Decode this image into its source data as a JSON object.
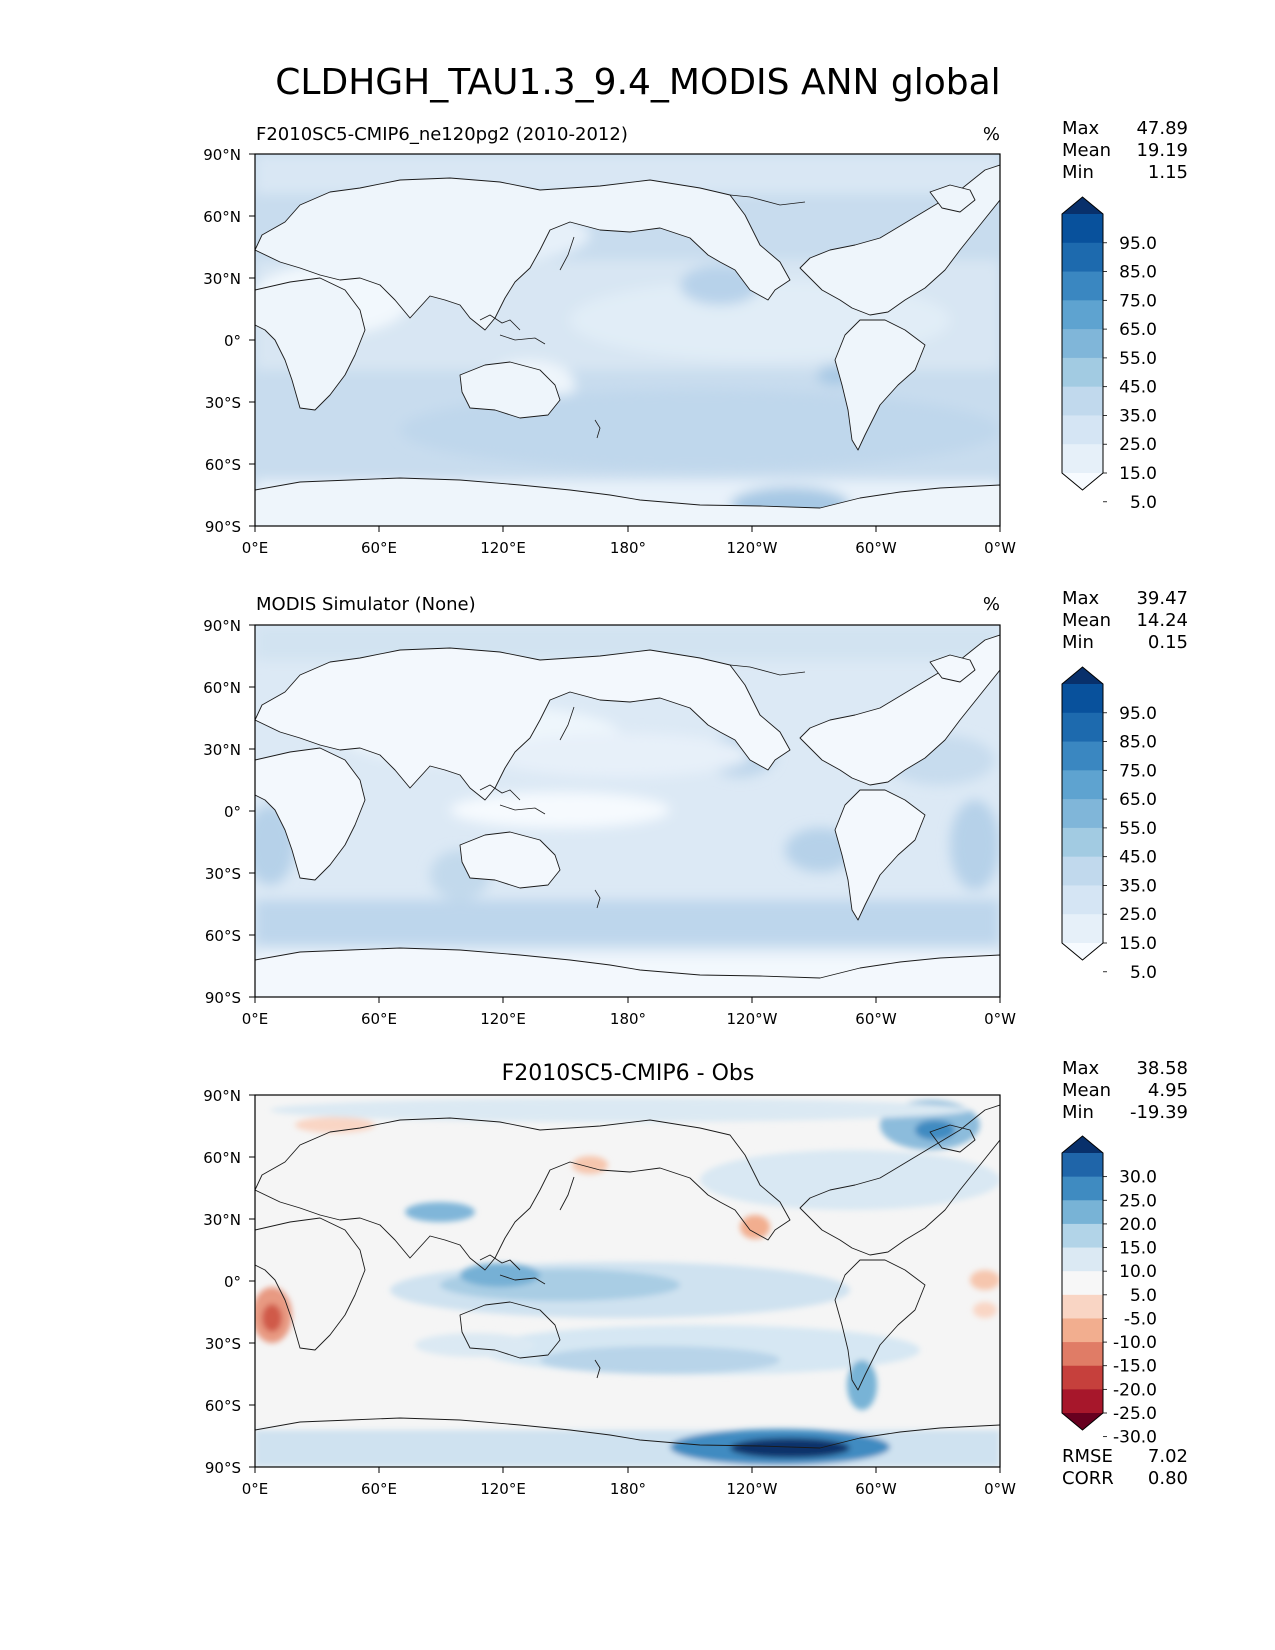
{
  "figure_title": "CLDHGH_TAU1.3_9.4_MODIS ANN global",
  "lat_ticks": [
    "90°N",
    "60°N",
    "30°N",
    "0°",
    "30°S",
    "60°S",
    "90°S"
  ],
  "lon_ticks": [
    "0°E",
    "60°E",
    "120°E",
    "180°",
    "120°W",
    "60°W",
    "0°W"
  ],
  "colors": {
    "blues": [
      "#f7fbff",
      "#e6f0f9",
      "#d5e5f4",
      "#c1d9ed",
      "#a2cbe2",
      "#80b6d9",
      "#5ea3d0",
      "#3a87c1",
      "#1d6aae",
      "#08519c",
      "#08306b"
    ],
    "diff": [
      "#67001f",
      "#a7172b",
      "#c6403c",
      "#e07c66",
      "#f2ae8f",
      "#f9d5c4",
      "#f7f7f7",
      "#dbe9f3",
      "#b2d4e8",
      "#78b3d6",
      "#3f8bc1",
      "#1f65a9",
      "#08306b"
    ],
    "coastline": "#1a1a1a"
  },
  "panels": [
    {
      "id": "test",
      "title": "F2010SC5-CMIP6_ne120pg2 (2010-2012)",
      "units": "%",
      "stats": [
        {
          "label": "Max",
          "value": "47.89"
        },
        {
          "label": "Mean",
          "value": "19.19"
        },
        {
          "label": "Min",
          "value": "1.15"
        }
      ],
      "colorbar": {
        "type": "sequential",
        "labels": [
          "95.0",
          "85.0",
          "75.0",
          "65.0",
          "55.0",
          "45.0",
          "35.0",
          "25.0",
          "15.0",
          "5.0"
        ]
      }
    },
    {
      "id": "reference",
      "title": "MODIS Simulator (None)",
      "units": "%",
      "stats": [
        {
          "label": "Max",
          "value": "39.47"
        },
        {
          "label": "Mean",
          "value": "14.24"
        },
        {
          "label": "Min",
          "value": "0.15"
        }
      ],
      "colorbar": {
        "type": "sequential",
        "labels": [
          "95.0",
          "85.0",
          "75.0",
          "65.0",
          "55.0",
          "45.0",
          "35.0",
          "25.0",
          "15.0",
          "5.0"
        ]
      }
    },
    {
      "id": "difference",
      "title": "F2010SC5-CMIP6 - Obs",
      "units": "",
      "stats": [
        {
          "label": "Max",
          "value": "38.58"
        },
        {
          "label": "Mean",
          "value": "4.95"
        },
        {
          "label": "Min",
          "value": "-19.39"
        }
      ],
      "colorbar": {
        "type": "diverging",
        "labels": [
          "30.0",
          "25.0",
          "20.0",
          "15.0",
          "10.0",
          "5.0",
          "-5.0",
          "-10.0",
          "-15.0",
          "-20.0",
          "-25.0",
          "-30.0"
        ]
      },
      "metrics": [
        {
          "label": "RMSE",
          "value": "7.02"
        },
        {
          "label": "CORR",
          "value": "0.80"
        }
      ]
    }
  ]
}
